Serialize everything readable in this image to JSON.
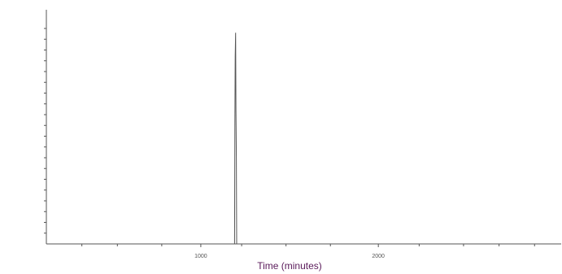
{
  "chart_data": {
    "type": "line",
    "title": "",
    "xlabel": "Time (minutes)",
    "ylabel": "",
    "xlim": [
      130,
      3030
    ],
    "ylim": [
      0,
      100
    ],
    "x_tick_labels": [
      {
        "value": 1000,
        "label": "1000"
      },
      {
        "value": 2000,
        "label": "2000"
      }
    ],
    "x_minor_ticks": [
      330,
      530,
      780,
      1230,
      1480,
      1730,
      2230,
      2480,
      2680,
      2880
    ],
    "y_ticks": [
      5,
      10,
      15,
      20,
      25,
      30,
      35,
      40,
      45,
      50,
      55,
      60,
      65,
      70,
      75,
      80,
      85,
      90,
      95,
      100
    ],
    "grid": false,
    "legend": "none",
    "series": [
      {
        "points": [
          [
            130,
            0
          ],
          [
            1190,
            0
          ],
          [
            1192,
            55
          ],
          [
            1194,
            87
          ],
          [
            1196,
            98
          ],
          [
            1198,
            62
          ],
          [
            1200,
            40
          ],
          [
            1202,
            0
          ],
          [
            3030,
            0
          ]
        ]
      }
    ],
    "colors": {
      "series": "#555555",
      "axis": "#555555",
      "label": "#5a1a5a",
      "tick_label": "#555555"
    }
  }
}
